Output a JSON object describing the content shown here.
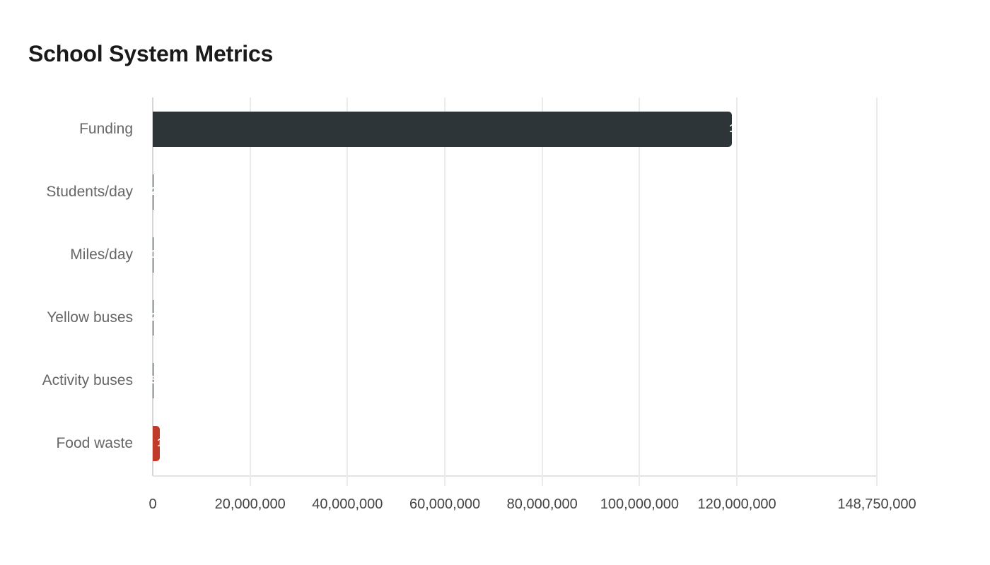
{
  "title": "School System Metrics",
  "chart_data": {
    "type": "bar",
    "orientation": "horizontal",
    "title": "School System Metrics",
    "xlabel": "",
    "ylabel": "",
    "categories": [
      "Funding",
      "Students/day",
      "Miles/day",
      "Yellow buses",
      "Activity buses",
      "Food waste"
    ],
    "values": [
      119000000,
      20000,
      10000,
      200,
      50,
      1450000
    ],
    "colors": [
      "#2e3538",
      "#2e3538",
      "#2e3538",
      "#2e3538",
      "#2e3538",
      "#c0392b"
    ],
    "xlim": [
      0,
      148750000
    ],
    "xticks": [
      0,
      20000000,
      40000000,
      60000000,
      80000000,
      100000000,
      120000000,
      148750000
    ],
    "xtick_labels": [
      "0",
      "20,000,000",
      "40,000,000",
      "60,000,000",
      "80,000,000",
      "100,000,000",
      "120,000,000",
      "148,750,000"
    ],
    "grid": true,
    "legend": "none"
  },
  "categories": [
    {
      "label": "Funding",
      "value": 119000000,
      "color": "#2e3538"
    },
    {
      "label": "Students/day",
      "value": 20000,
      "color": "#2e3538"
    },
    {
      "label": "Miles/day",
      "value": 10000,
      "color": "#2e3538"
    },
    {
      "label": "Yellow buses",
      "value": 200,
      "color": "#2e3538"
    },
    {
      "label": "Activity buses",
      "value": 50,
      "color": "#2e3538"
    },
    {
      "label": "Food waste",
      "value": 1450000,
      "color": "#c0392b"
    }
  ],
  "ticks": [
    "0",
    "20,000,000",
    "40,000,000",
    "60,000,000",
    "80,000,000",
    "100,000,000",
    "120,000,000",
    "148,750,000"
  ]
}
